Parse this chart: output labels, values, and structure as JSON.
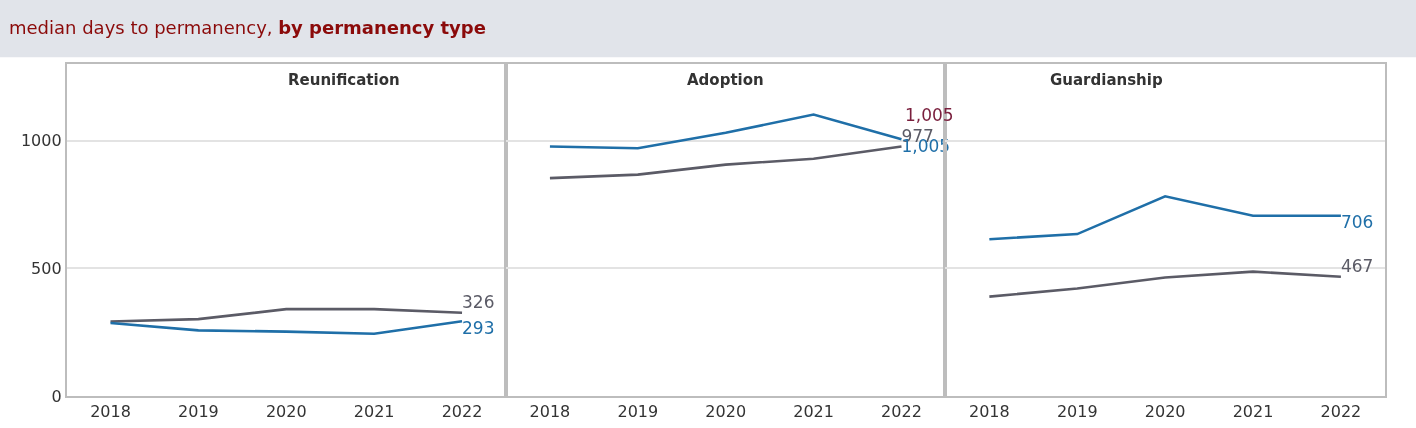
{
  "chart_data": [
    {
      "type": "line",
      "title": "median days to permanency, by permanency type",
      "subtitle": "Reunification",
      "categories": [
        "2018",
        "2019",
        "2020",
        "2021",
        "2022"
      ],
      "ylim": [
        0,
        1300
      ],
      "yticks": [
        0,
        500,
        1000
      ],
      "grid": "y",
      "series": [
        {
          "color": "#5b5b66",
          "values": [
            292,
            301,
            340,
            340,
            326
          ],
          "value_labels": [
            null,
            null,
            null,
            null,
            "326"
          ]
        },
        {
          "color": "#1f6fa8",
          "values": [
            286,
            257,
            252,
            244,
            293
          ],
          "value_labels": [
            null,
            null,
            null,
            null,
            "293"
          ]
        }
      ]
    },
    {
      "type": "line",
      "subtitle": "Adoption",
      "categories": [
        "2018",
        "2019",
        "2020",
        "2021",
        "2022"
      ],
      "ylim": [
        0,
        1300
      ],
      "yticks": [
        0,
        500,
        1000
      ],
      "grid": "y",
      "tick_labels": "x",
      "annotations": [
        {
          "text": "1,005",
          "x": "2022",
          "y": 1005
        }
      ],
      "series": [
        {
          "color": "#5b5b66",
          "values": [
            853,
            867,
            906,
            929,
            977
          ],
          "value_labels": [
            null,
            null,
            null,
            null,
            "977"
          ]
        },
        {
          "color": "#1f6fa8",
          "values": [
            977,
            970,
            1031,
            1102,
            1005
          ],
          "value_labels": [
            null,
            null,
            null,
            null,
            "1,005"
          ]
        }
      ]
    },
    {
      "type": "line",
      "subtitle": "Guardianship",
      "categories": [
        "2018",
        "2019",
        "2020",
        "2021",
        "2022"
      ],
      "ylim": [
        0,
        1300
      ],
      "yticks": [
        0,
        500,
        1000
      ],
      "grid": "y",
      "tick_labels": "x",
      "series": [
        {
          "color": "#5b5b66",
          "values": [
            389,
            421,
            464,
            487,
            467
          ],
          "value_labels": [
            null,
            null,
            null,
            null,
            "467"
          ]
        },
        {
          "color": "#1f6fa8",
          "values": [
            614,
            634,
            782,
            706,
            706
          ],
          "value_labels": [
            null,
            null,
            null,
            null,
            "706"
          ]
        }
      ]
    }
  ]
}
